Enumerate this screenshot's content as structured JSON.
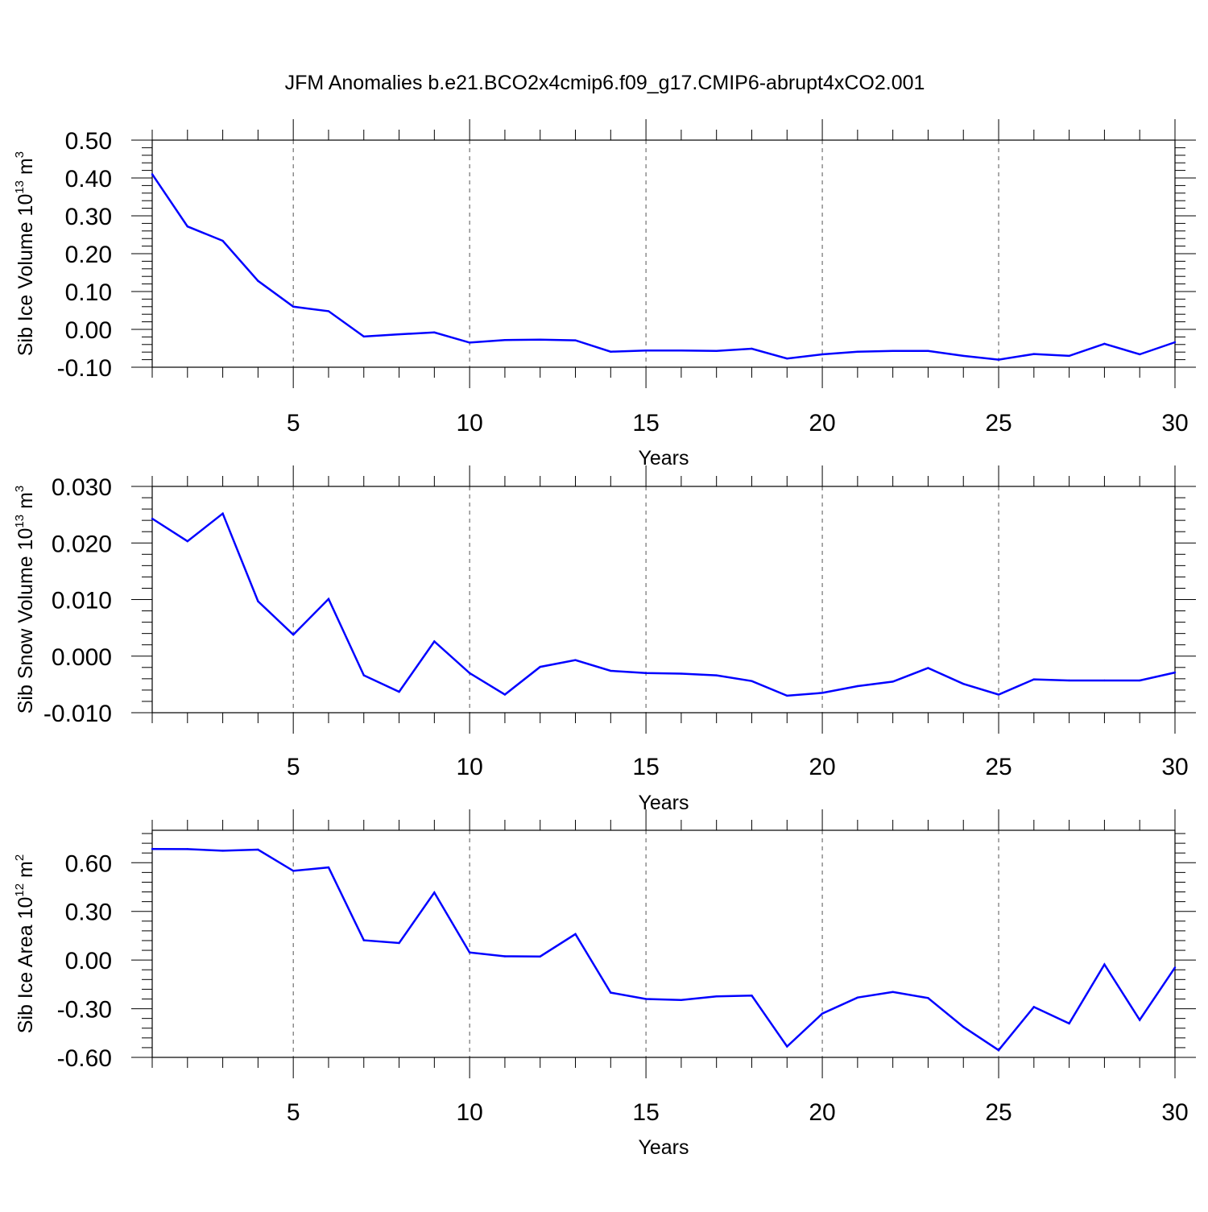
{
  "title": "JFM Anomalies b.e21.BCO2x4cmip6.f09_g17.CMIP6-abrupt4xCO2.001",
  "colors": {
    "line": "#0000ff",
    "axis": "#000000",
    "grid": "#555555"
  },
  "chart_data": [
    {
      "type": "line",
      "xlabel": "Years",
      "ylabel": {
        "prefix": "Sib Ice Volume 10",
        "exp": "13",
        "unit": " m",
        "unit_exp": "3"
      },
      "xlim": [
        1,
        30
      ],
      "ylim": [
        -0.1,
        0.5
      ],
      "xticks": [
        "5",
        "10",
        "15",
        "20",
        "25",
        "30"
      ],
      "xtick_values": [
        5,
        10,
        15,
        20,
        25,
        30
      ],
      "yticks": [
        "0.50",
        "0.40",
        "0.30",
        "0.20",
        "0.10",
        "0.00",
        "-0.10"
      ],
      "ytick_values": [
        0.5,
        0.4,
        0.3,
        0.2,
        0.1,
        0.0,
        -0.1
      ],
      "grid": "vertical dashed at major x ticks",
      "x": [
        1,
        2,
        3,
        4,
        5,
        6,
        7,
        8,
        9,
        10,
        11,
        12,
        13,
        14,
        15,
        16,
        17,
        18,
        19,
        20,
        21,
        22,
        23,
        24,
        25,
        26,
        27,
        28,
        29,
        30
      ],
      "series": [
        {
          "values": [
            0.41,
            0.272,
            0.234,
            0.128,
            0.06,
            0.048,
            -0.019,
            -0.013,
            -0.008,
            -0.035,
            -0.028,
            -0.027,
            -0.029,
            -0.059,
            -0.056,
            -0.056,
            -0.057,
            -0.051,
            -0.077,
            -0.066,
            -0.059,
            -0.057,
            -0.057,
            -0.07,
            -0.08,
            -0.065,
            -0.07,
            -0.038,
            -0.066,
            -0.034
          ]
        }
      ]
    },
    {
      "type": "line",
      "xlabel": "Years",
      "ylabel": {
        "prefix": "Sib Snow Volume 10",
        "exp": "13",
        "unit": " m",
        "unit_exp": "3"
      },
      "xlim": [
        1,
        30
      ],
      "ylim": [
        -0.01,
        0.03
      ],
      "xticks": [
        "5",
        "10",
        "15",
        "20",
        "25",
        "30"
      ],
      "xtick_values": [
        5,
        10,
        15,
        20,
        25,
        30
      ],
      "yticks": [
        "0.030",
        "0.020",
        "0.010",
        "0.000",
        "-0.010"
      ],
      "ytick_values": [
        0.03,
        0.02,
        0.01,
        0.0,
        -0.01
      ],
      "grid": "vertical dashed at major x ticks",
      "x": [
        1,
        2,
        3,
        4,
        5,
        6,
        7,
        8,
        9,
        10,
        11,
        12,
        13,
        14,
        15,
        16,
        17,
        18,
        19,
        20,
        21,
        22,
        23,
        24,
        25,
        26,
        27,
        28,
        29,
        30
      ],
      "series": [
        {
          "values": [
            0.0243,
            0.0203,
            0.0252,
            0.0097,
            0.0038,
            0.0101,
            -0.0034,
            -0.0063,
            0.0026,
            -0.003,
            -0.0068,
            -0.0019,
            -0.0007,
            -0.0026,
            -0.003,
            -0.0031,
            -0.0034,
            -0.0044,
            -0.007,
            -0.0065,
            -0.0053,
            -0.0045,
            -0.0021,
            -0.0049,
            -0.0068,
            -0.0041,
            -0.0043,
            -0.0043,
            -0.0043,
            -0.0029
          ]
        }
      ]
    },
    {
      "type": "line",
      "xlabel": "Years",
      "ylabel": {
        "prefix": "Sib Ice Area 10",
        "exp": "12",
        "unit": " m",
        "unit_exp": "2"
      },
      "xlim": [
        1,
        30
      ],
      "ylim": [
        -0.6,
        0.8
      ],
      "xticks": [
        "5",
        "10",
        "15",
        "20",
        "25",
        "30"
      ],
      "xtick_values": [
        5,
        10,
        15,
        20,
        25,
        30
      ],
      "yticks": [
        "0.60",
        "0.30",
        "0.00",
        "-0.30",
        "-0.60"
      ],
      "ytick_values": [
        0.6,
        0.3,
        0.0,
        -0.3,
        -0.6
      ],
      "grid": "vertical dashed at major x ticks",
      "x": [
        1,
        2,
        3,
        4,
        5,
        6,
        7,
        8,
        9,
        10,
        11,
        12,
        13,
        14,
        15,
        16,
        17,
        18,
        19,
        20,
        21,
        22,
        23,
        24,
        25,
        26,
        27,
        28,
        29,
        30
      ],
      "series": [
        {
          "values": [
            0.685,
            0.684,
            0.674,
            0.681,
            0.55,
            0.571,
            0.122,
            0.105,
            0.416,
            0.047,
            0.023,
            0.022,
            0.16,
            -0.201,
            -0.24,
            -0.246,
            -0.224,
            -0.219,
            -0.533,
            -0.33,
            -0.231,
            -0.197,
            -0.234,
            -0.412,
            -0.556,
            -0.289,
            -0.391,
            -0.027,
            -0.369,
            -0.046
          ]
        }
      ]
    }
  ]
}
